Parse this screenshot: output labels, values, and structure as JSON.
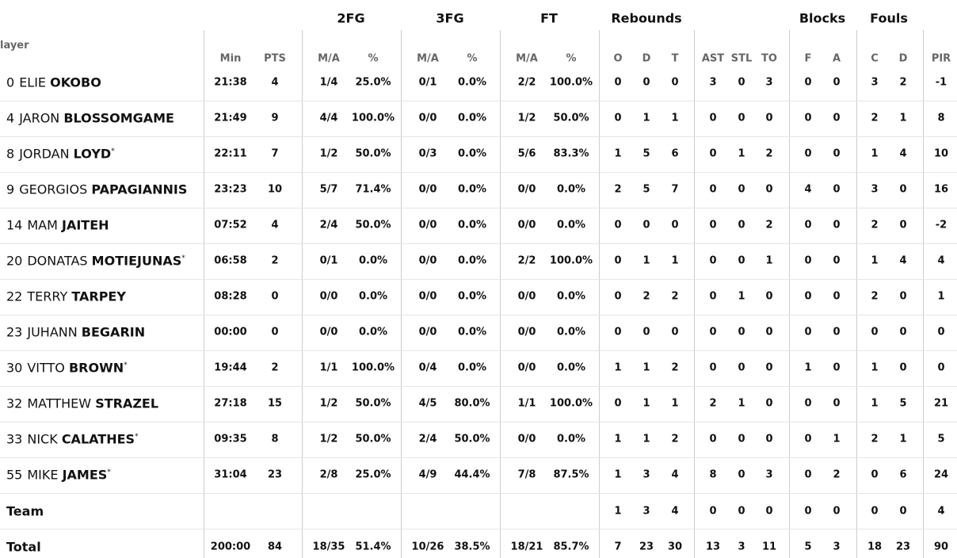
{
  "table": {
    "groups": [
      {
        "label": "2FG"
      },
      {
        "label": "3FG"
      },
      {
        "label": "FT"
      },
      {
        "label": "Rebounds"
      },
      {
        "label": "Blocks"
      },
      {
        "label": "Fouls"
      }
    ],
    "player_header": "layer",
    "columns": [
      "Min",
      "PTS",
      "M/A",
      "%",
      "M/A",
      "%",
      "M/A",
      "%",
      "O",
      "D",
      "T",
      "AST",
      "STL",
      "TO",
      "F",
      "A",
      "C",
      "D",
      "PIR"
    ],
    "rows": [
      {
        "number": "0",
        "first": "ELIE",
        "last": "OKOBO",
        "cells": [
          "21:38",
          "4",
          "1/4",
          "25.0%",
          "0/1",
          "0.0%",
          "2/2",
          "100.0%",
          "0",
          "0",
          "0",
          "3",
          "0",
          "3",
          "0",
          "0",
          "3",
          "2",
          "-1"
        ]
      },
      {
        "number": "4",
        "first": "JARON",
        "last": "BLOSSOMGAME",
        "cells": [
          "21:49",
          "9",
          "4/4",
          "100.0%",
          "0/0",
          "0.0%",
          "1/2",
          "50.0%",
          "0",
          "1",
          "1",
          "0",
          "0",
          "0",
          "0",
          "0",
          "2",
          "1",
          "8"
        ]
      },
      {
        "number": "8",
        "first": "JORDAN",
        "last": "LOYD",
        "star": "*",
        "cells": [
          "22:11",
          "7",
          "1/2",
          "50.0%",
          "0/3",
          "0.0%",
          "5/6",
          "83.3%",
          "1",
          "5",
          "6",
          "0",
          "1",
          "2",
          "0",
          "0",
          "1",
          "4",
          "10"
        ]
      },
      {
        "number": "9",
        "first": "GEORGIOS",
        "last": "PAPAGIANNIS",
        "cells": [
          "23:23",
          "10",
          "5/7",
          "71.4%",
          "0/0",
          "0.0%",
          "0/0",
          "0.0%",
          "2",
          "5",
          "7",
          "0",
          "0",
          "0",
          "4",
          "0",
          "3",
          "0",
          "16"
        ]
      },
      {
        "number": "14",
        "first": "MAM",
        "last": "JAITEH",
        "cells": [
          "07:52",
          "4",
          "2/4",
          "50.0%",
          "0/0",
          "0.0%",
          "0/0",
          "0.0%",
          "0",
          "0",
          "0",
          "0",
          "0",
          "2",
          "0",
          "0",
          "2",
          "0",
          "-2"
        ]
      },
      {
        "number": "20",
        "first": "DONATAS",
        "last": "MOTIEJUNAS",
        "star": "*",
        "cells": [
          "06:58",
          "2",
          "0/1",
          "0.0%",
          "0/0",
          "0.0%",
          "2/2",
          "100.0%",
          "0",
          "1",
          "1",
          "0",
          "0",
          "1",
          "0",
          "0",
          "1",
          "4",
          "4"
        ]
      },
      {
        "number": "22",
        "first": "TERRY",
        "last": "TARPEY",
        "cells": [
          "08:28",
          "0",
          "0/0",
          "0.0%",
          "0/0",
          "0.0%",
          "0/0",
          "0.0%",
          "0",
          "2",
          "2",
          "0",
          "1",
          "0",
          "0",
          "0",
          "2",
          "0",
          "1"
        ]
      },
      {
        "number": "23",
        "first": "JUHANN",
        "last": "BEGARIN",
        "cells": [
          "00:00",
          "0",
          "0/0",
          "0.0%",
          "0/0",
          "0.0%",
          "0/0",
          "0.0%",
          "0",
          "0",
          "0",
          "0",
          "0",
          "0",
          "0",
          "0",
          "0",
          "0",
          "0"
        ]
      },
      {
        "number": "30",
        "first": "VITTO",
        "last": "BROWN",
        "star": "*",
        "cells": [
          "19:44",
          "2",
          "1/1",
          "100.0%",
          "0/4",
          "0.0%",
          "0/0",
          "0.0%",
          "1",
          "1",
          "2",
          "0",
          "0",
          "0",
          "1",
          "0",
          "1",
          "0",
          "0"
        ]
      },
      {
        "number": "32",
        "first": "MATTHEW",
        "last": "STRAZEL",
        "cells": [
          "27:18",
          "15",
          "1/2",
          "50.0%",
          "4/5",
          "80.0%",
          "1/1",
          "100.0%",
          "0",
          "1",
          "1",
          "2",
          "1",
          "0",
          "0",
          "0",
          "1",
          "5",
          "21"
        ]
      },
      {
        "number": "33",
        "first": "NICK",
        "last": "CALATHES",
        "star": "*",
        "cells": [
          "09:35",
          "8",
          "1/2",
          "50.0%",
          "2/4",
          "50.0%",
          "0/0",
          "0.0%",
          "1",
          "1",
          "2",
          "0",
          "0",
          "0",
          "0",
          "1",
          "2",
          "1",
          "5"
        ]
      },
      {
        "number": "55",
        "first": "MIKE",
        "last": "JAMES",
        "star": "*",
        "cells": [
          "31:04",
          "23",
          "2/8",
          "25.0%",
          "4/9",
          "44.4%",
          "7/8",
          "87.5%",
          "1",
          "3",
          "4",
          "8",
          "0",
          "3",
          "0",
          "2",
          "0",
          "6",
          "24"
        ]
      }
    ],
    "team": {
      "label": "Team",
      "cells": [
        "1",
        "3",
        "4",
        "0",
        "0",
        "0",
        "0",
        "0",
        "0",
        "0",
        "4"
      ]
    },
    "total": {
      "label": "Total",
      "cells": [
        "200:00",
        "84",
        "18/35",
        "51.4%",
        "10/26",
        "38.5%",
        "18/21",
        "85.7%",
        "7",
        "23",
        "30",
        "13",
        "3",
        "11",
        "5",
        "3",
        "18",
        "23",
        "90"
      ]
    }
  }
}
